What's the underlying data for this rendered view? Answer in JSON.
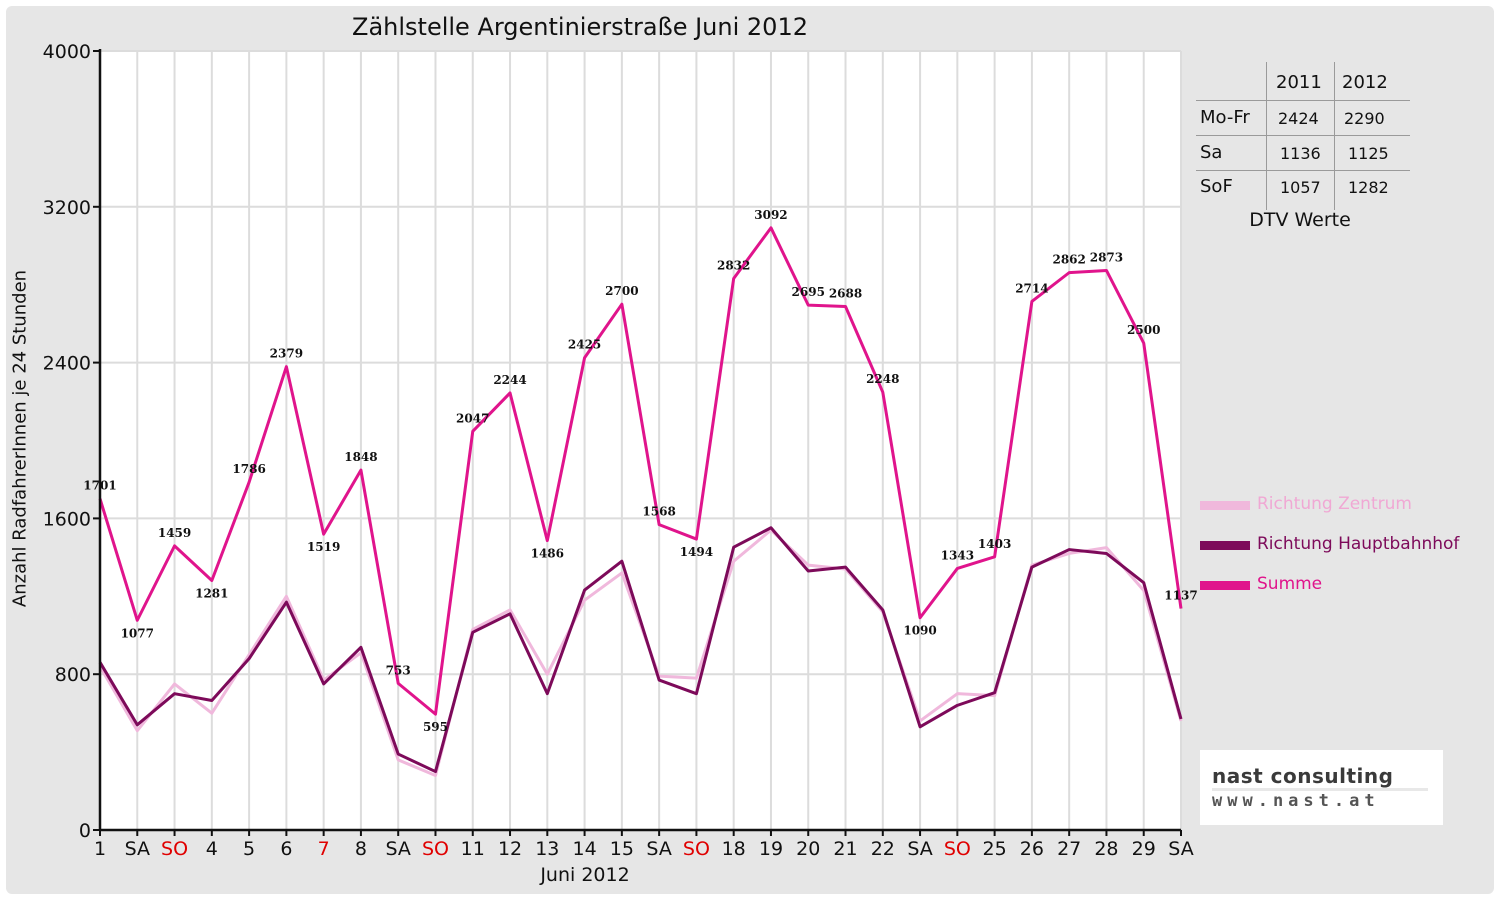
{
  "chart_data": {
    "type": "line",
    "title": "Zählstelle Argentinierstraße Juni 2012",
    "xlabel": "Juni 2012",
    "ylabel": "Anzahl RadfahrerInnen je 24 Stunden",
    "ylim": [
      0,
      4000
    ],
    "yticks": [
      "0",
      "800",
      "1600",
      "2400",
      "3200",
      "4000"
    ],
    "grid": true,
    "categories": [
      "1",
      "SA",
      "SO",
      "4",
      "5",
      "6",
      "7",
      "8",
      "SA",
      "SO",
      "11",
      "12",
      "13",
      "14",
      "15",
      "SA",
      "SO",
      "18",
      "19",
      "20",
      "21",
      "22",
      "SA",
      "SO",
      "25",
      "26",
      "27",
      "28",
      "29",
      "SA"
    ],
    "red_categories": [
      2,
      6,
      9,
      16,
      23
    ],
    "legend_position": "right",
    "series": [
      {
        "name": "Richtung Zentrum",
        "color": "#f0b8dc",
        "values": [
          840,
          510,
          750,
          600,
          900,
          1200,
          770,
          910,
          360,
          280,
          1030,
          1130,
          800,
          1180,
          1320,
          790,
          780,
          1380,
          1540,
          1360,
          1340,
          1120,
          560,
          700,
          690,
          1360,
          1420,
          1450,
          1230,
          560
        ]
      },
      {
        "name": "Richtung Hauptbahnhof",
        "color": "#7d0a5a",
        "values": [
          861,
          540,
          700,
          665,
          880,
          1170,
          750,
          938,
          390,
          300,
          1015,
          1110,
          700,
          1232,
          1380,
          770,
          700,
          1452,
          1552,
          1330,
          1350,
          1130,
          530,
          640,
          705,
          1350,
          1440,
          1420,
          1270,
          570
        ]
      },
      {
        "name": "Summe",
        "color": "#e0148c",
        "values": [
          1701,
          1077,
          1459,
          1281,
          1786,
          2379,
          1519,
          1848,
          753,
          595,
          2047,
          2244,
          1486,
          2425,
          2700,
          1568,
          1494,
          2832,
          3092,
          2695,
          2688,
          2248,
          1090,
          1343,
          1403,
          2714,
          2862,
          2873,
          2500,
          1137
        ]
      }
    ],
    "data_labels": [
      "1701",
      "1077",
      "1459",
      "1281",
      "1786",
      "2379",
      "1519",
      "1848",
      "753",
      "595",
      "2047",
      "2244",
      "1486",
      "2425",
      "2700",
      "1568",
      "1494",
      "2832",
      "3092",
      "2695",
      "2688",
      "2248",
      "1090",
      "1343",
      "1403",
      "2714",
      "2862",
      "2873",
      "2500",
      "1137"
    ]
  },
  "dtv_table": {
    "headers": [
      "2011",
      "2012"
    ],
    "rows": [
      {
        "label": "Mo-Fr",
        "v2011": "2424",
        "v2012": "2290"
      },
      {
        "label": "Sa",
        "v2011": "1136",
        "v2012": "1125"
      },
      {
        "label": "SoF",
        "v2011": "1057",
        "v2012": "1282"
      }
    ],
    "caption": "DTV Werte"
  },
  "logo": {
    "name": "nast consulting",
    "url": "www.nast.at"
  }
}
